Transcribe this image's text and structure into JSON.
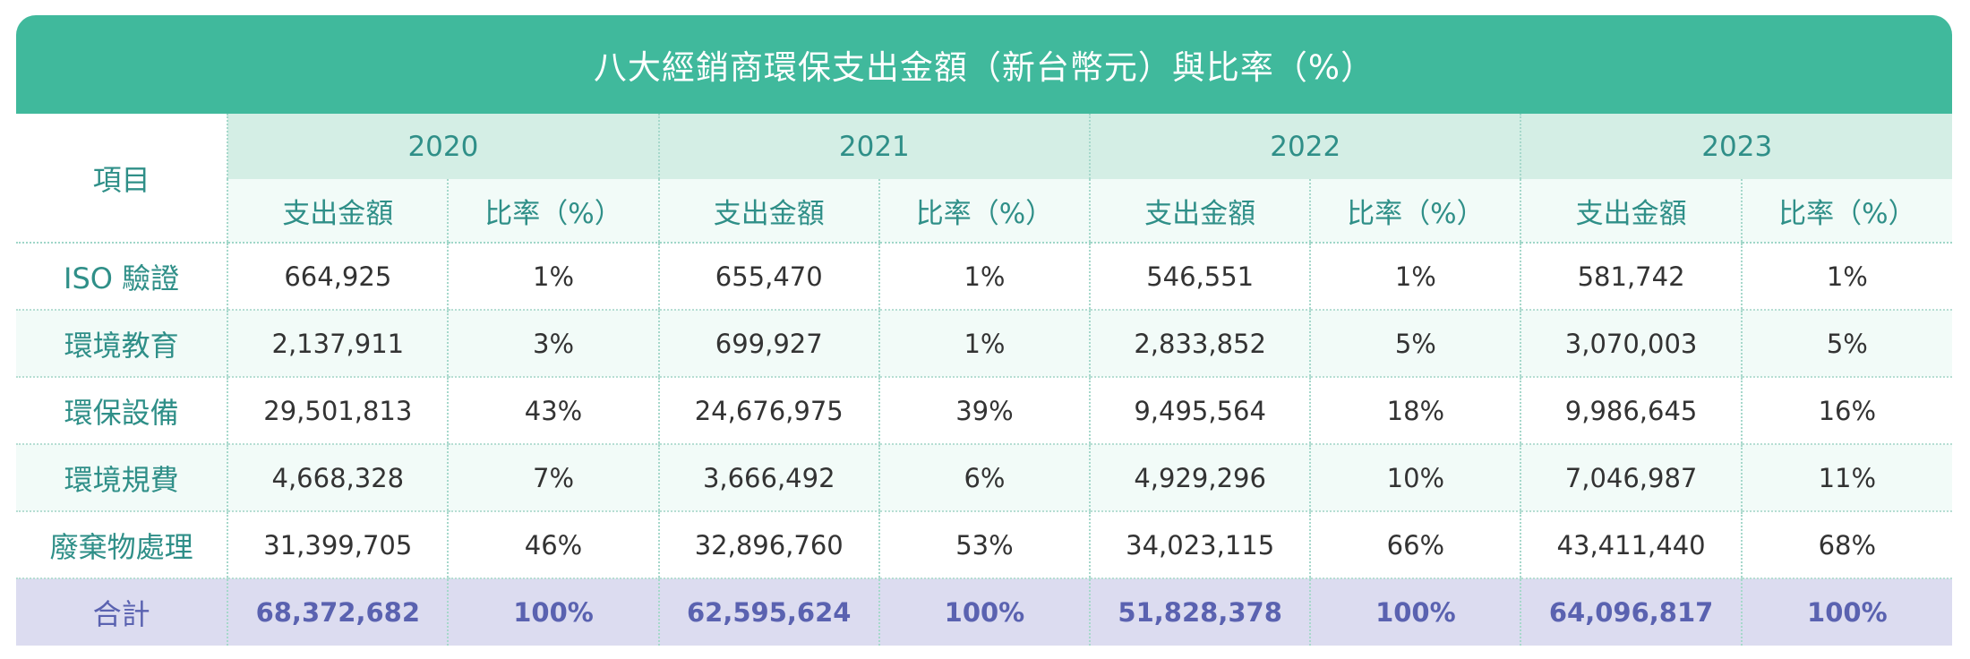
{
  "title": "八大經銷商環保支出金額（新台幣元）與比率（%）",
  "header": {
    "item_label": "項目",
    "years": [
      "2020",
      "2021",
      "2022",
      "2023"
    ],
    "amount_label": "支出金額",
    "rate_label": "比率（%）"
  },
  "rows": [
    {
      "label": "ISO 驗證",
      "values": [
        "664,925",
        "1%",
        "655,470",
        "1%",
        "546,551",
        "1%",
        "581,742",
        "1%"
      ]
    },
    {
      "label": "環境教育",
      "values": [
        "2,137,911",
        "3%",
        "699,927",
        "1%",
        "2,833,852",
        "5%",
        "3,070,003",
        "5%"
      ]
    },
    {
      "label": "環保設備",
      "values": [
        "29,501,813",
        "43%",
        "24,676,975",
        "39%",
        "9,495,564",
        "18%",
        "9,986,645",
        "16%"
      ]
    },
    {
      "label": "環境規費",
      "values": [
        "4,668,328",
        "7%",
        "3,666,492",
        "6%",
        "4,929,296",
        "10%",
        "7,046,987",
        "11%"
      ]
    },
    {
      "label": "廢棄物處理",
      "values": [
        "31,399,705",
        "46%",
        "32,896,760",
        "53%",
        "34,023,115",
        "66%",
        "43,411,440",
        "68%"
      ]
    }
  ],
  "total": {
    "label": "合計",
    "values": [
      "68,372,682",
      "100%",
      "62,595,624",
      "100%",
      "51,828,378",
      "100%",
      "64,096,817",
      "100%"
    ]
  }
}
